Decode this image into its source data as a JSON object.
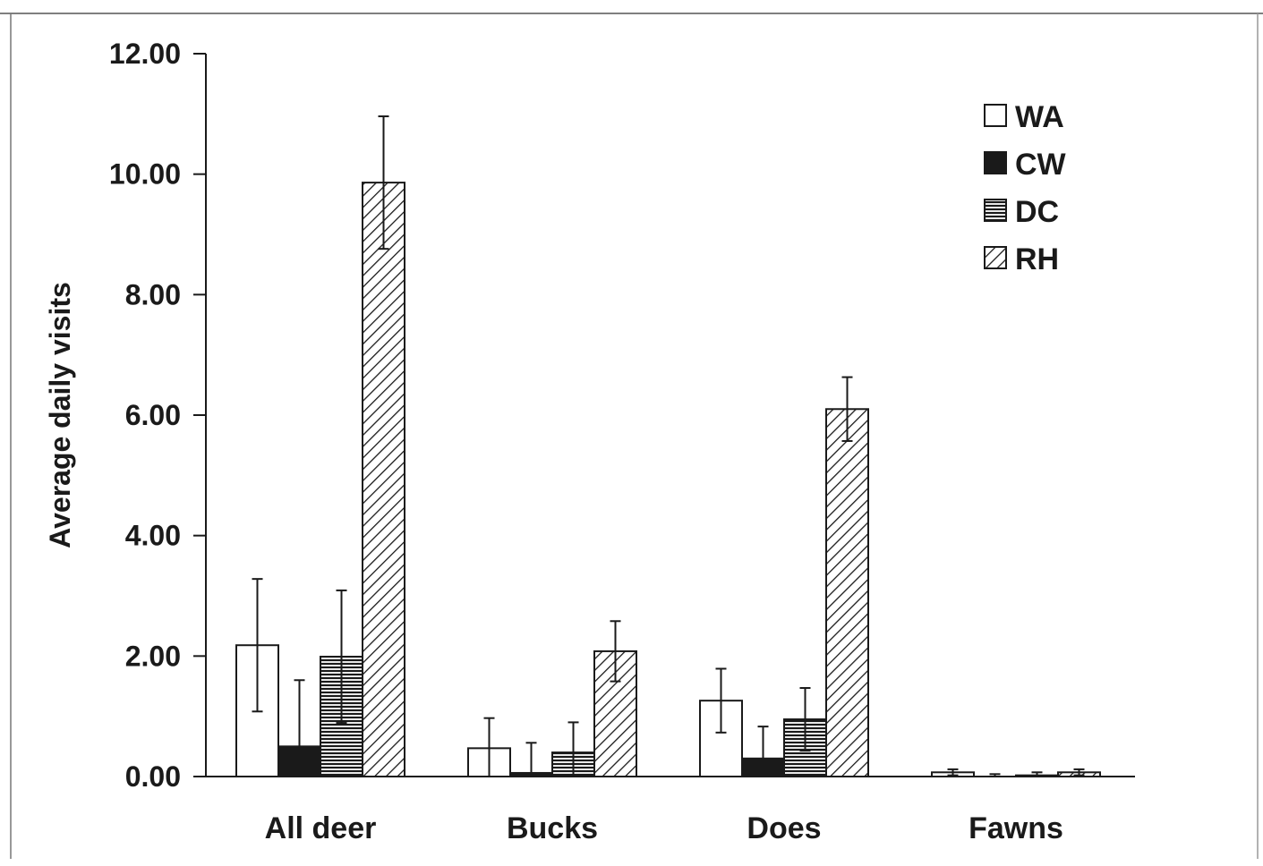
{
  "chart_data": {
    "type": "bar",
    "title": "",
    "xlabel": "",
    "ylabel": "Average daily visits",
    "ylim": [
      0,
      12
    ],
    "yticks": [
      "0.00",
      "2.00",
      "4.00",
      "6.00",
      "8.00",
      "10.00",
      "12.00"
    ],
    "ytick_values": [
      0,
      2,
      4,
      6,
      8,
      10,
      12
    ],
    "categories": [
      "All deer",
      "Bucks",
      "Does",
      "Fawns"
    ],
    "legend_position": "top-right",
    "grid": false,
    "series": [
      {
        "name": "WA",
        "pattern": "empty",
        "color": "#ffffff",
        "values": [
          2.18,
          0.47,
          1.26,
          0.07
        ],
        "error": [
          1.1,
          0.5,
          0.53,
          0.05
        ]
      },
      {
        "name": "CW",
        "pattern": "solid",
        "color": "#1a1a1a",
        "values": [
          0.5,
          0.06,
          0.3,
          0.0
        ],
        "error": [
          1.1,
          0.5,
          0.53,
          0.04
        ]
      },
      {
        "name": "DC",
        "pattern": "horizontal-lines",
        "color": "#1a1a1a",
        "values": [
          1.99,
          0.4,
          0.95,
          0.02
        ],
        "error": [
          1.1,
          0.5,
          0.52,
          0.05
        ]
      },
      {
        "name": "RH",
        "pattern": "diagonal-lines",
        "color": "#1a1a1a",
        "values": [
          9.86,
          2.08,
          6.1,
          0.07
        ],
        "error": [
          1.1,
          0.5,
          0.53,
          0.05
        ]
      }
    ]
  }
}
